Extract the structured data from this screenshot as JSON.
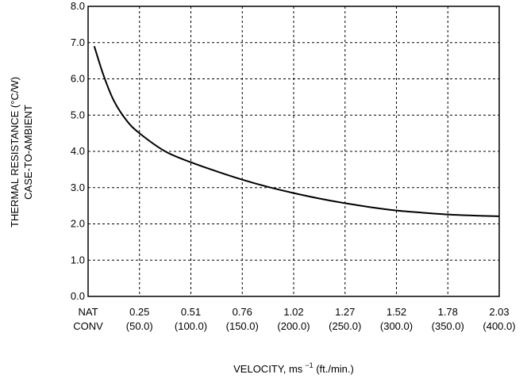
{
  "chart_data": {
    "type": "line",
    "title": "",
    "xlabel": {
      "prefix": "VELOCITY, ms",
      "superscript": "−1",
      "suffix": " (ft./min.)"
    },
    "ylabel": {
      "line1": "THERMAL RESISTANCE (°C/W)",
      "line2": "CASE-TO-AMBIENT"
    },
    "xlim": [
      0,
      8
    ],
    "ylim": [
      0,
      8
    ],
    "grid": true,
    "x_ticks": [
      {
        "value": 0,
        "line1": "NAT",
        "line2": "CONV"
      },
      {
        "value": 1,
        "line1": "0.25",
        "line2": "(50.0)"
      },
      {
        "value": 2,
        "line1": "0.51",
        "line2": "(100.0)"
      },
      {
        "value": 3,
        "line1": "0.76",
        "line2": "(150.0)"
      },
      {
        "value": 4,
        "line1": "1.02",
        "line2": "(200.0)"
      },
      {
        "value": 5,
        "line1": "1.27",
        "line2": "(250.0)"
      },
      {
        "value": 6,
        "line1": "1.52",
        "line2": "(300.0)"
      },
      {
        "value": 7,
        "line1": "1.78",
        "line2": "(350.0)"
      },
      {
        "value": 8,
        "line1": "2.03",
        "line2": "(400.0)"
      }
    ],
    "y_ticks": [
      "0.0",
      "1.0",
      "2.0",
      "3.0",
      "4.0",
      "5.0",
      "6.0",
      "7.0",
      "8.0"
    ],
    "series": [
      {
        "points": [
          {
            "x": 0.12,
            "y": 6.9
          },
          {
            "x": 0.3,
            "y": 6.1
          },
          {
            "x": 0.5,
            "y": 5.4
          },
          {
            "x": 0.75,
            "y": 4.85
          },
          {
            "x": 1.0,
            "y": 4.5
          },
          {
            "x": 1.5,
            "y": 4.0
          },
          {
            "x": 2.0,
            "y": 3.7
          },
          {
            "x": 2.5,
            "y": 3.45
          },
          {
            "x": 3.0,
            "y": 3.22
          },
          {
            "x": 3.5,
            "y": 3.02
          },
          {
            "x": 4.0,
            "y": 2.85
          },
          {
            "x": 4.5,
            "y": 2.7
          },
          {
            "x": 5.0,
            "y": 2.57
          },
          {
            "x": 5.5,
            "y": 2.46
          },
          {
            "x": 6.0,
            "y": 2.37
          },
          {
            "x": 6.5,
            "y": 2.31
          },
          {
            "x": 7.0,
            "y": 2.26
          },
          {
            "x": 7.5,
            "y": 2.23
          },
          {
            "x": 8.0,
            "y": 2.21
          }
        ],
        "color": "#000000"
      }
    ]
  }
}
